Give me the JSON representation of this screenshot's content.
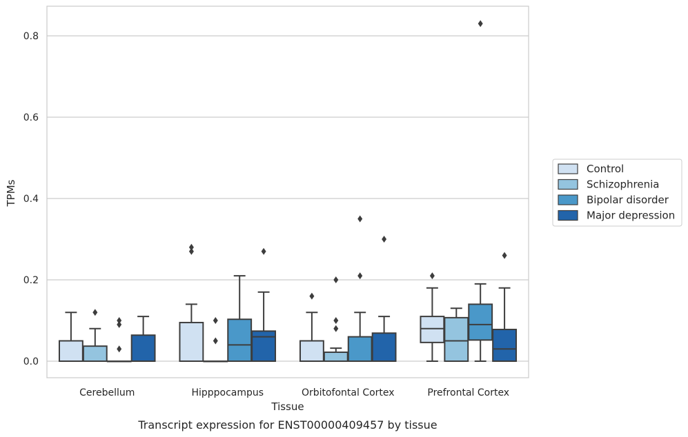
{
  "chart_data": {
    "type": "boxplot",
    "title": "",
    "xlabel": "Tissue",
    "ylabel": "TPMs",
    "caption": "Transcript expression for ENST00000409457 by tissue",
    "ylim": [
      -0.04,
      0.875
    ],
    "yticks": [
      "0.0",
      "0.2",
      "0.4",
      "0.6",
      "0.8"
    ],
    "grid": "horizontal",
    "legend_position": "right",
    "categories": [
      "Cerebellum",
      "Hipppocampus",
      "Orbitofontal Cortex",
      "Prefrontal Cortex"
    ],
    "series": [
      {
        "name": "Control",
        "color": "#d0e1f2",
        "boxes": [
          {
            "whislo": 0,
            "q1": 0,
            "med": 0,
            "q3": 0.05,
            "whishi": 0.12,
            "fliers": []
          },
          {
            "whislo": 0,
            "q1": 0,
            "med": 0,
            "q3": 0.095,
            "whishi": 0.14,
            "fliers": [
              0.27,
              0.28
            ]
          },
          {
            "whislo": 0,
            "q1": 0,
            "med": 0,
            "q3": 0.05,
            "whishi": 0.12,
            "fliers": [
              0.16
            ]
          },
          {
            "whislo": 0,
            "q1": 0.046,
            "med": 0.08,
            "q3": 0.11,
            "whishi": 0.18,
            "fliers": [
              0.21
            ]
          }
        ]
      },
      {
        "name": "Schizophrenia",
        "color": "#94c4df",
        "boxes": [
          {
            "whislo": 0,
            "q1": 0,
            "med": 0,
            "q3": 0.037,
            "whishi": 0.08,
            "fliers": [
              0.12
            ]
          },
          {
            "whislo": 0,
            "q1": 0,
            "med": 0,
            "q3": 0,
            "whishi": 0,
            "fliers": [
              0.05,
              0.1
            ]
          },
          {
            "whislo": 0,
            "q1": 0,
            "med": 0,
            "q3": 0.022,
            "whishi": 0.032,
            "fliers": [
              0.08,
              0.1,
              0.2
            ]
          },
          {
            "whislo": 0,
            "q1": 0,
            "med": 0.05,
            "q3": 0.107,
            "whishi": 0.13,
            "fliers": []
          }
        ]
      },
      {
        "name": "Bipolar disorder",
        "color": "#4a98c9",
        "boxes": [
          {
            "whislo": 0,
            "q1": 0,
            "med": 0,
            "q3": 0,
            "whishi": 0,
            "fliers": [
              0.03,
              0.09,
              0.1
            ]
          },
          {
            "whislo": 0,
            "q1": 0,
            "med": 0.04,
            "q3": 0.103,
            "whishi": 0.21,
            "fliers": []
          },
          {
            "whislo": 0,
            "q1": 0,
            "med": 0,
            "q3": 0.06,
            "whishi": 0.12,
            "fliers": [
              0.21,
              0.35
            ]
          },
          {
            "whislo": 0,
            "q1": 0.052,
            "med": 0.09,
            "q3": 0.14,
            "whishi": 0.19,
            "fliers": [
              0.83
            ]
          }
        ]
      },
      {
        "name": "Major depression",
        "color": "#2264aa",
        "boxes": [
          {
            "whislo": 0,
            "q1": 0,
            "med": 0,
            "q3": 0.064,
            "whishi": 0.11,
            "fliers": []
          },
          {
            "whislo": 0,
            "q1": 0,
            "med": 0.06,
            "q3": 0.074,
            "whishi": 0.17,
            "fliers": [
              0.27
            ]
          },
          {
            "whislo": 0,
            "q1": 0,
            "med": 0,
            "q3": 0.069,
            "whishi": 0.11,
            "fliers": [
              0.3
            ]
          },
          {
            "whislo": 0,
            "q1": 0,
            "med": 0.03,
            "q3": 0.078,
            "whishi": 0.18,
            "fliers": [
              0.26
            ]
          }
        ]
      }
    ]
  }
}
